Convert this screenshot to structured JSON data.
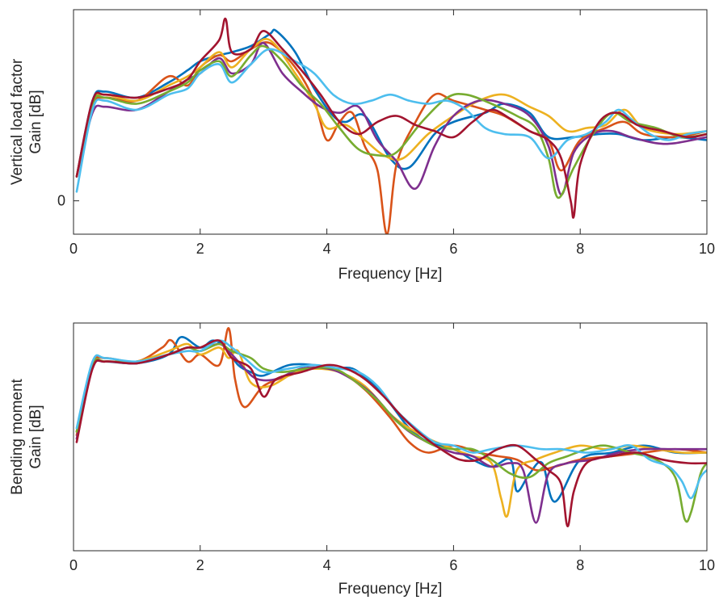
{
  "colors": [
    "#0072BD",
    "#D95319",
    "#EDB120",
    "#7E2F8E",
    "#77AC30",
    "#4DBEEE",
    "#A2142F"
  ],
  "chart_data": [
    {
      "type": "line",
      "title": "",
      "xlabel": "Frequency [Hz]",
      "ylabel": [
        "Vertical load factor",
        "Gain [dB]"
      ],
      "xlim": [
        0,
        10
      ],
      "ylim": [
        -1.1,
        6.3
      ],
      "xticks": [
        "0",
        "2",
        "4",
        "6",
        "8",
        "10"
      ],
      "yticks": [
        {
          "value": 0,
          "label": "0"
        }
      ],
      "grid": false,
      "legend": "none",
      "series": [
        {
          "x": [
            0.05,
            0.3,
            0.5,
            1.0,
            1.5,
            1.8,
            2.0,
            2.3,
            2.5,
            2.8,
            3.1,
            3.2,
            3.5,
            3.8,
            4.1,
            4.3,
            4.6,
            5.0,
            5.3,
            5.7,
            6.0,
            6.5,
            6.8,
            7.2,
            7.5,
            7.9,
            8.3,
            8.6,
            9.0,
            9.5,
            10.0
          ],
          "y": [
            0.8,
            3.3,
            3.6,
            3.4,
            3.9,
            4.3,
            4.6,
            4.8,
            4.9,
            5.1,
            5.5,
            5.6,
            4.9,
            3.7,
            2.8,
            2.6,
            2.8,
            1.4,
            1.1,
            2.2,
            2.6,
            2.9,
            3.2,
            2.9,
            2.1,
            2.1,
            2.2,
            2.2,
            2.0,
            2.1,
            2.0
          ]
        },
        {
          "x": [
            0.05,
            0.3,
            0.5,
            1.0,
            1.5,
            1.8,
            2.0,
            2.3,
            2.5,
            2.8,
            3.1,
            3.5,
            3.8,
            4.0,
            4.2,
            4.4,
            4.6,
            4.8,
            4.95,
            5.1,
            5.4,
            5.7,
            6.0,
            6.5,
            6.8,
            7.2,
            7.5,
            7.7,
            8.0,
            8.4,
            8.7,
            9.0,
            9.5,
            10.0
          ],
          "y": [
            0.8,
            3.1,
            3.4,
            3.3,
            4.1,
            3.8,
            4.4,
            4.8,
            4.6,
            5.0,
            5.2,
            4.4,
            3.3,
            2.0,
            2.6,
            2.9,
            1.8,
            1.0,
            -1.1,
            1.2,
            2.6,
            3.5,
            3.3,
            3.0,
            2.8,
            2.3,
            2.0,
            1.0,
            2.0,
            2.4,
            2.6,
            2.2,
            2.1,
            2.3
          ]
        },
        {
          "x": [
            0.05,
            0.3,
            0.5,
            1.0,
            1.5,
            1.8,
            2.0,
            2.3,
            2.5,
            2.8,
            3.1,
            3.5,
            3.8,
            4.0,
            4.3,
            4.6,
            4.9,
            5.2,
            5.6,
            6.0,
            6.4,
            6.8,
            7.2,
            7.5,
            7.8,
            8.1,
            8.4,
            8.7,
            9.0,
            9.5,
            10.0
          ],
          "y": [
            0.8,
            3.2,
            3.5,
            3.3,
            3.8,
            4.1,
            4.4,
            4.9,
            4.4,
            5.0,
            5.3,
            4.2,
            3.2,
            2.4,
            2.5,
            2.0,
            1.5,
            1.4,
            2.2,
            2.8,
            3.3,
            3.5,
            3.1,
            2.8,
            2.3,
            2.4,
            2.5,
            3.0,
            2.4,
            2.2,
            2.3
          ]
        },
        {
          "x": [
            0.05,
            0.3,
            0.5,
            1.0,
            1.5,
            1.8,
            2.0,
            2.3,
            2.5,
            2.8,
            3.0,
            3.3,
            3.6,
            3.9,
            4.2,
            4.5,
            4.8,
            5.1,
            5.4,
            5.7,
            6.0,
            6.4,
            6.8,
            7.2,
            7.5,
            7.7,
            7.9,
            8.2,
            8.5,
            8.8,
            9.2,
            9.5,
            10.0
          ],
          "y": [
            0.8,
            2.9,
            3.1,
            3.0,
            3.6,
            4.0,
            4.2,
            4.7,
            4.2,
            4.5,
            5.2,
            4.2,
            3.6,
            3.1,
            2.9,
            3.1,
            2.0,
            1.3,
            0.4,
            1.8,
            2.8,
            3.3,
            3.2,
            2.8,
            1.8,
            0.2,
            1.6,
            2.2,
            2.3,
            2.1,
            1.9,
            1.9,
            2.1
          ]
        },
        {
          "x": [
            0.05,
            0.3,
            0.5,
            1.0,
            1.5,
            1.8,
            2.0,
            2.3,
            2.5,
            2.8,
            3.0,
            3.3,
            3.6,
            3.9,
            4.2,
            4.5,
            4.8,
            5.1,
            5.5,
            5.9,
            6.2,
            6.6,
            7.0,
            7.3,
            7.5,
            7.65,
            7.9,
            8.2,
            8.5,
            8.8,
            9.2,
            9.6,
            10.0
          ],
          "y": [
            0.8,
            3.2,
            3.4,
            3.2,
            3.6,
            3.9,
            4.3,
            4.6,
            4.1,
            4.8,
            5.1,
            4.6,
            3.8,
            3.2,
            2.4,
            1.7,
            1.5,
            1.6,
            2.6,
            3.4,
            3.5,
            3.2,
            2.8,
            2.4,
            1.4,
            0.1,
            1.1,
            2.2,
            2.9,
            2.6,
            2.4,
            2.1,
            2.2
          ]
        },
        {
          "x": [
            0.05,
            0.3,
            0.5,
            1.0,
            1.5,
            1.8,
            2.0,
            2.3,
            2.5,
            2.8,
            3.1,
            3.5,
            3.8,
            4.1,
            4.4,
            4.7,
            5.0,
            5.3,
            5.6,
            5.9,
            6.2,
            6.5,
            6.8,
            7.2,
            7.5,
            7.8,
            8.1,
            8.4,
            8.6,
            8.8,
            9.1,
            9.4,
            9.7,
            10.0
          ],
          "y": [
            0.3,
            3.0,
            3.3,
            3.0,
            3.5,
            3.7,
            4.2,
            4.5,
            3.9,
            4.5,
            5.0,
            4.6,
            4.2,
            3.5,
            3.2,
            3.3,
            3.5,
            3.3,
            3.2,
            3.3,
            3.0,
            2.4,
            2.2,
            2.1,
            1.4,
            2.0,
            2.2,
            2.6,
            3.0,
            2.7,
            2.2,
            2.0,
            2.2,
            2.3
          ]
        },
        {
          "x": [
            0.05,
            0.3,
            0.5,
            1.0,
            1.5,
            1.8,
            2.0,
            2.3,
            2.4,
            2.5,
            2.8,
            3.0,
            3.3,
            3.6,
            3.9,
            4.2,
            4.5,
            4.8,
            5.1,
            5.4,
            5.7,
            6.0,
            6.3,
            6.6,
            6.9,
            7.2,
            7.5,
            7.7,
            7.85,
            7.9,
            8.0,
            8.3,
            8.6,
            8.9,
            9.3,
            9.7,
            10.0
          ],
          "y": [
            0.8,
            3.3,
            3.5,
            3.4,
            3.7,
            4.0,
            4.6,
            5.3,
            6.0,
            4.9,
            5.0,
            5.6,
            5.0,
            4.3,
            3.5,
            2.6,
            2.2,
            2.6,
            2.8,
            2.5,
            2.3,
            2.1,
            2.6,
            3.0,
            2.7,
            2.3,
            2.0,
            1.4,
            0.0,
            -0.5,
            1.2,
            2.6,
            2.9,
            2.5,
            2.3,
            2.1,
            2.2
          ]
        }
      ]
    },
    {
      "type": "line",
      "title": "",
      "xlabel": "Frequency [Hz]",
      "ylabel": [
        "Bending moment",
        "Gain [dB]"
      ],
      "xlim": [
        0,
        10
      ],
      "ylim": [
        -5.5,
        1.0
      ],
      "xticks": [
        "0",
        "2",
        "4",
        "6",
        "8",
        "10"
      ],
      "yticks": [],
      "grid": false,
      "legend": "none",
      "series": [
        {
          "x": [
            0.05,
            0.3,
            0.5,
            1.0,
            1.5,
            1.7,
            2.0,
            2.2,
            2.4,
            2.6,
            2.8,
            3.0,
            3.4,
            3.8,
            4.1,
            4.4,
            4.7,
            5.0,
            5.3,
            5.6,
            6.0,
            6.3,
            6.6,
            6.9,
            7.0,
            7.2,
            7.4,
            7.6,
            8.0,
            8.5,
            9.0,
            9.5,
            10.0
          ],
          "y": [
            -2.1,
            -0.2,
            -0.1,
            -0.15,
            0.1,
            0.6,
            0.3,
            0.5,
            0.3,
            -0.2,
            -0.4,
            -0.5,
            -0.2,
            -0.2,
            -0.3,
            -0.3,
            -0.7,
            -1.3,
            -2.0,
            -2.4,
            -2.6,
            -2.9,
            -3.1,
            -2.9,
            -3.8,
            -3.3,
            -3.0,
            -4.1,
            -2.9,
            -2.7,
            -2.5,
            -2.7,
            -2.7
          ]
        },
        {
          "x": [
            0.05,
            0.3,
            0.5,
            1.0,
            1.4,
            1.55,
            1.8,
            2.0,
            2.3,
            2.45,
            2.55,
            2.7,
            3.0,
            3.4,
            3.8,
            4.2,
            4.6,
            5.0,
            5.3,
            5.6,
            6.0,
            6.4,
            6.7,
            7.0,
            7.3,
            7.6,
            8.0,
            8.5,
            9.0,
            9.5,
            10.0
          ],
          "y": [
            -2.2,
            -0.2,
            0.0,
            -0.1,
            0.3,
            0.5,
            -0.1,
            0.1,
            -0.2,
            0.85,
            -0.6,
            -1.4,
            -0.8,
            -0.5,
            -0.3,
            -0.4,
            -0.9,
            -1.7,
            -2.4,
            -2.7,
            -2.5,
            -2.7,
            -2.8,
            -2.9,
            -3.2,
            -3.1,
            -2.9,
            -2.8,
            -2.7,
            -2.6,
            -2.7
          ]
        },
        {
          "x": [
            0.05,
            0.3,
            0.5,
            1.0,
            1.5,
            1.8,
            2.0,
            2.3,
            2.45,
            2.6,
            2.8,
            3.1,
            3.5,
            3.8,
            4.2,
            4.6,
            5.0,
            5.3,
            5.6,
            6.0,
            6.3,
            6.6,
            6.75,
            6.85,
            7.0,
            7.3,
            7.6,
            8.0,
            8.4,
            8.8,
            9.2,
            9.6,
            10.0
          ],
          "y": [
            -2.1,
            -0.2,
            -0.1,
            -0.1,
            0.2,
            0.4,
            0.1,
            0.3,
            0.0,
            0.2,
            -0.7,
            -0.8,
            -0.4,
            -0.3,
            -0.4,
            -0.8,
            -1.6,
            -2.0,
            -2.3,
            -2.6,
            -2.8,
            -3.0,
            -4.0,
            -4.5,
            -3.2,
            -2.9,
            -2.7,
            -2.5,
            -2.6,
            -2.5,
            -2.6,
            -2.7,
            -2.7
          ]
        },
        {
          "x": [
            0.05,
            0.3,
            0.5,
            1.0,
            1.5,
            1.8,
            2.0,
            2.3,
            2.5,
            2.7,
            2.9,
            3.2,
            3.6,
            4.0,
            4.3,
            4.7,
            5.0,
            5.3,
            5.7,
            6.0,
            6.3,
            6.6,
            6.9,
            7.1,
            7.3,
            7.5,
            7.8,
            8.2,
            8.6,
            9.0,
            9.5,
            10.0
          ],
          "y": [
            -2.3,
            -0.3,
            -0.1,
            -0.15,
            0.1,
            0.3,
            0.2,
            0.4,
            0.1,
            -0.3,
            -0.6,
            -0.6,
            -0.3,
            -0.3,
            -0.5,
            -1.0,
            -1.6,
            -2.1,
            -2.5,
            -2.7,
            -2.8,
            -3.1,
            -3.0,
            -3.2,
            -4.7,
            -3.3,
            -3.0,
            -2.9,
            -2.7,
            -2.6,
            -2.6,
            -2.6
          ]
        },
        {
          "x": [
            0.05,
            0.3,
            0.5,
            1.0,
            1.5,
            1.8,
            2.0,
            2.3,
            2.5,
            2.8,
            3.0,
            3.3,
            3.7,
            4.1,
            4.4,
            4.8,
            5.1,
            5.4,
            5.7,
            6.0,
            6.3,
            6.6,
            6.9,
            7.2,
            7.5,
            7.8,
            8.1,
            8.4,
            8.8,
            9.2,
            9.5,
            9.65,
            9.75,
            9.9,
            10.0
          ],
          "y": [
            -2.1,
            -0.2,
            -0.1,
            -0.1,
            0.1,
            0.3,
            0.2,
            0.4,
            0.2,
            0.0,
            -0.3,
            -0.4,
            -0.3,
            -0.3,
            -0.6,
            -1.2,
            -1.8,
            -2.2,
            -2.5,
            -2.6,
            -2.6,
            -2.9,
            -3.3,
            -3.4,
            -3.0,
            -2.8,
            -2.6,
            -2.5,
            -2.7,
            -2.9,
            -3.4,
            -4.6,
            -4.4,
            -3.3,
            -3.0
          ]
        },
        {
          "x": [
            0.05,
            0.3,
            0.5,
            1.0,
            1.5,
            1.8,
            2.0,
            2.3,
            2.5,
            2.7,
            3.0,
            3.4,
            3.8,
            4.2,
            4.5,
            4.8,
            5.1,
            5.4,
            5.7,
            6.0,
            6.3,
            6.6,
            7.0,
            7.4,
            7.7,
            8.1,
            8.5,
            8.8,
            9.1,
            9.4,
            9.6,
            9.75,
            9.9,
            10.0
          ],
          "y": [
            -2.0,
            -0.1,
            0.0,
            -0.1,
            0.1,
            0.2,
            0.2,
            0.5,
            0.3,
            0.0,
            -0.4,
            -0.3,
            -0.2,
            -0.3,
            -0.4,
            -0.8,
            -1.5,
            -2.0,
            -2.4,
            -2.5,
            -2.7,
            -2.6,
            -2.5,
            -2.6,
            -2.6,
            -2.7,
            -2.6,
            -2.5,
            -2.9,
            -3.1,
            -3.5,
            -4.0,
            -3.4,
            -3.2
          ]
        },
        {
          "x": [
            0.05,
            0.3,
            0.5,
            1.0,
            1.5,
            1.8,
            2.0,
            2.3,
            2.5,
            2.8,
            3.0,
            3.2,
            3.6,
            4.0,
            4.3,
            4.6,
            4.9,
            5.2,
            5.5,
            5.8,
            6.1,
            6.4,
            6.7,
            7.0,
            7.3,
            7.5,
            7.7,
            7.8,
            7.9,
            8.1,
            8.5,
            8.9,
            9.3,
            9.7,
            10.0
          ],
          "y": [
            -2.4,
            -0.3,
            -0.1,
            -0.15,
            0.1,
            0.3,
            0.3,
            0.5,
            0.0,
            -0.3,
            -1.1,
            -0.6,
            -0.4,
            -0.2,
            -0.3,
            -0.6,
            -1.1,
            -1.7,
            -2.2,
            -2.6,
            -2.9,
            -2.9,
            -2.6,
            -2.5,
            -2.9,
            -3.2,
            -3.6,
            -4.8,
            -3.8,
            -3.0,
            -2.8,
            -2.7,
            -2.9,
            -3.0,
            -3.0
          ]
        }
      ]
    }
  ]
}
